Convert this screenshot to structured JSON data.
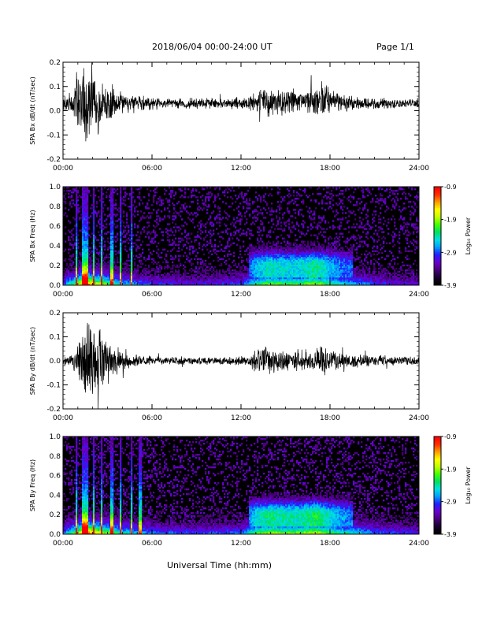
{
  "header": {
    "title": "2018/06/04  00:00-24:00 UT",
    "page": "Page 1/1"
  },
  "footer": {
    "xlabel": "Universal Time (hh:mm)"
  },
  "colors": {
    "trace": "#000000",
    "spectrogram_background": "#000000",
    "colormap": [
      "#000000",
      "#1a0033",
      "#4b0082",
      "#6a00d0",
      "#2020ff",
      "#00a0ff",
      "#00e0e0",
      "#00e060",
      "#40ff00",
      "#c0ff00",
      "#ffff00",
      "#ffa000",
      "#ff3000",
      "#ff0000"
    ]
  },
  "chart_data": [
    {
      "type": "line",
      "ylabel": "SPA Bx dB/dt (nT/sec)",
      "xlim": [
        0,
        24
      ],
      "ylim": [
        -0.2,
        0.2
      ],
      "xticks": [
        "00:00",
        "06:00",
        "12:00",
        "18:00",
        "24:00"
      ],
      "yticks": [
        "-0.2",
        "-0.1",
        "0.0",
        "0.1",
        "0.2"
      ],
      "envelope": {
        "hours": [
          0,
          0.5,
          1,
          1.3,
          1.6,
          2,
          2.5,
          3,
          3.5,
          4,
          5,
          6,
          7,
          8,
          9,
          10,
          11,
          12,
          12.5,
          13,
          13.5,
          14,
          15,
          16,
          16.5,
          17,
          17.5,
          18,
          18.5,
          19,
          20,
          21,
          22,
          23,
          24
        ],
        "center": [
          0.03,
          0.03,
          0.03,
          0.02,
          0.02,
          0.03,
          0.03,
          0.03,
          0.03,
          0.03,
          0.03,
          0.03,
          0.03,
          0.03,
          0.03,
          0.03,
          0.03,
          0.03,
          0.03,
          0.03,
          0.04,
          0.04,
          0.04,
          0.04,
          0.04,
          0.04,
          0.04,
          0.04,
          0.04,
          0.03,
          0.03,
          0.03,
          0.03,
          0.03,
          0.03
        ],
        "amplitude": [
          0.03,
          0.05,
          0.12,
          0.2,
          0.22,
          0.14,
          0.1,
          0.09,
          0.06,
          0.05,
          0.04,
          0.03,
          0.025,
          0.025,
          0.025,
          0.025,
          0.025,
          0.03,
          0.03,
          0.05,
          0.07,
          0.07,
          0.06,
          0.05,
          0.06,
          0.08,
          0.1,
          0.06,
          0.05,
          0.04,
          0.035,
          0.03,
          0.025,
          0.02,
          0.02
        ]
      }
    },
    {
      "type": "heatmap",
      "ylabel": "SPA Bx Freq (Hz)",
      "xlim": [
        0,
        24
      ],
      "ylim": [
        0,
        1.0
      ],
      "xticks": [
        "00:00",
        "06:00",
        "12:00",
        "18:00",
        "24:00"
      ],
      "yticks": [
        "0.0",
        "0.2",
        "0.4",
        "0.6",
        "0.8",
        "1.0"
      ],
      "colorbar": {
        "label": "Log₁₀ Power",
        "range": [
          -3.9,
          -0.9
        ],
        "ticks": [
          "-0.9",
          "-1.9",
          "-2.9",
          "-3.9"
        ]
      },
      "activity": {
        "hours": [
          0,
          1,
          1.5,
          2,
          3,
          4,
          6,
          9,
          12,
          13,
          14,
          15,
          16,
          17,
          18,
          19,
          20,
          21,
          24
        ],
        "level": [
          0.3,
          0.7,
          1.0,
          0.8,
          0.6,
          0.45,
          0.3,
          0.25,
          0.3,
          0.55,
          0.65,
          0.6,
          0.6,
          0.7,
          0.55,
          0.45,
          0.4,
          0.3,
          0.2
        ],
        "bright_columns_hours": [
          0.9,
          1.3,
          1.5,
          1.65,
          2.1,
          2.6,
          3.3,
          3.9,
          4.6
        ]
      }
    },
    {
      "type": "line",
      "ylabel": "SPA By dB/dt (nT/sec)",
      "xlim": [
        0,
        24
      ],
      "ylim": [
        -0.2,
        0.2
      ],
      "xticks": [
        "00:00",
        "06:00",
        "12:00",
        "18:00",
        "24:00"
      ],
      "yticks": [
        "-0.2",
        "-0.1",
        "0.0",
        "0.1",
        "0.2"
      ],
      "envelope": {
        "hours": [
          0,
          0.5,
          1,
          1.3,
          1.6,
          2,
          2.5,
          3,
          3.5,
          4,
          5,
          6,
          7,
          8,
          9,
          10,
          11,
          12,
          12.5,
          13,
          13.5,
          14,
          15,
          16,
          16.5,
          17,
          17.5,
          18,
          18.5,
          19,
          20,
          21,
          22,
          23,
          24
        ],
        "center": [
          0.0,
          0.0,
          0.0,
          0.0,
          0.0,
          0.0,
          0.0,
          0.0,
          0.0,
          0.0,
          0.0,
          0.0,
          0.0,
          0.0,
          0.0,
          0.0,
          0.0,
          0.0,
          0.0,
          0.0,
          0.0,
          0.0,
          0.0,
          0.0,
          0.0,
          0.0,
          0.0,
          0.0,
          0.0,
          0.0,
          0.0,
          0.0,
          0.0,
          0.0,
          0.0
        ],
        "amplitude": [
          0.02,
          0.03,
          0.08,
          0.15,
          0.2,
          0.18,
          0.15,
          0.12,
          0.08,
          0.05,
          0.03,
          0.02,
          0.02,
          0.018,
          0.018,
          0.018,
          0.018,
          0.02,
          0.025,
          0.05,
          0.07,
          0.06,
          0.05,
          0.05,
          0.05,
          0.06,
          0.07,
          0.05,
          0.04,
          0.035,
          0.03,
          0.025,
          0.02,
          0.02,
          0.02
        ]
      }
    },
    {
      "type": "heatmap",
      "ylabel": "SPA By Freq (Hz)",
      "xlim": [
        0,
        24
      ],
      "ylim": [
        0,
        1.0
      ],
      "xticks": [
        "00:00",
        "06:00",
        "12:00",
        "18:00",
        "24:00"
      ],
      "yticks": [
        "0.0",
        "0.2",
        "0.4",
        "0.6",
        "0.8",
        "1.0"
      ],
      "colorbar": {
        "label": "Log₁₀ Power",
        "range": [
          -3.9,
          -0.9
        ],
        "ticks": [
          "-0.9",
          "-1.9",
          "-2.9",
          "-3.9"
        ]
      },
      "activity": {
        "hours": [
          0,
          1,
          1.5,
          2,
          3,
          4,
          6,
          9,
          12,
          13,
          14,
          15,
          16,
          17,
          18,
          19,
          20,
          21,
          24
        ],
        "level": [
          0.35,
          0.7,
          1.0,
          0.85,
          0.65,
          0.5,
          0.35,
          0.3,
          0.35,
          0.6,
          0.7,
          0.65,
          0.65,
          0.75,
          0.6,
          0.5,
          0.45,
          0.35,
          0.25
        ],
        "bright_columns_hours": [
          0.9,
          1.3,
          1.5,
          1.65,
          2.1,
          2.6,
          3.3,
          3.9,
          4.6,
          5.2
        ]
      }
    }
  ]
}
